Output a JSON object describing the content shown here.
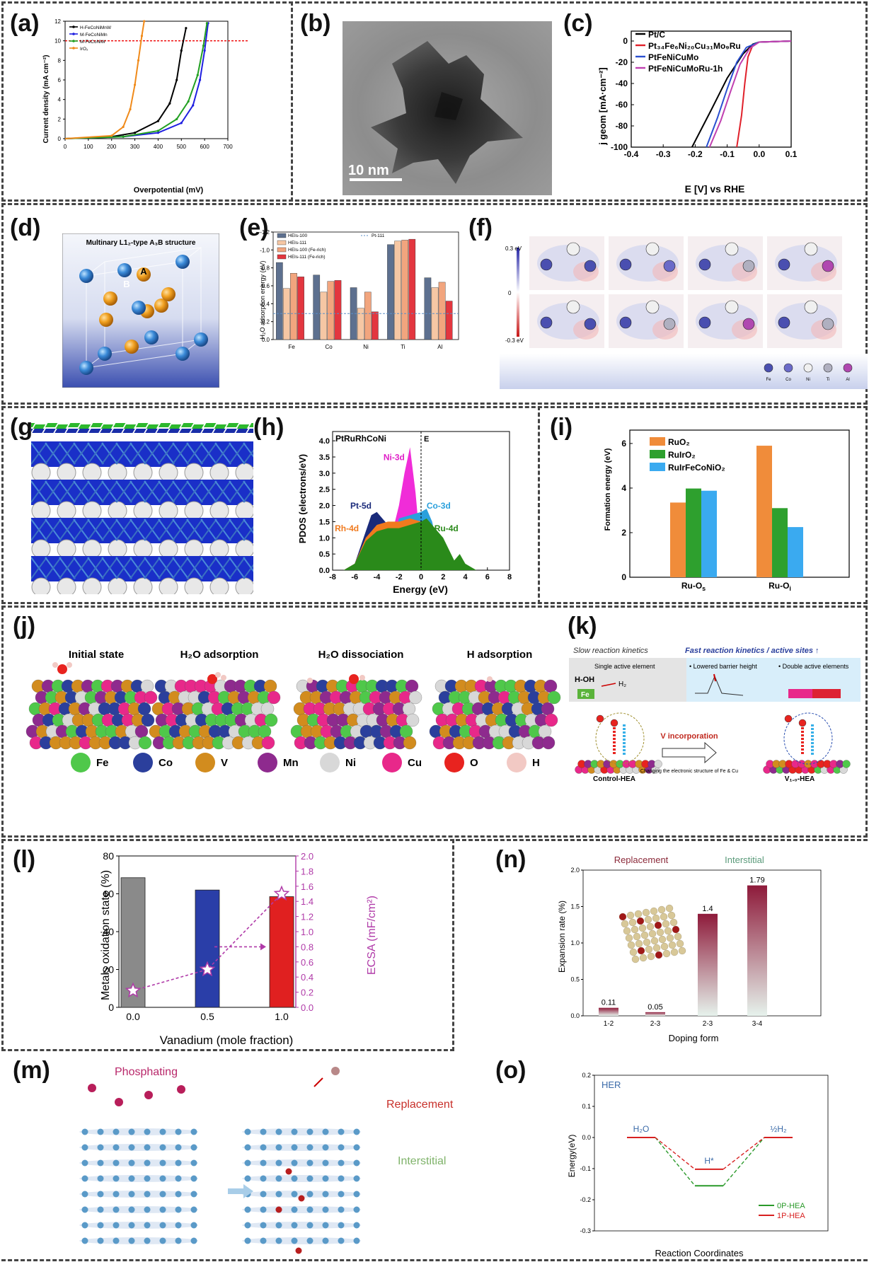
{
  "figure": {
    "panel_labels": [
      "(a)",
      "(b)",
      "(c)",
      "(d)",
      "(e)",
      "(f)",
      "(g)",
      "(h)",
      "(i)",
      "(j)",
      "(k)",
      "(l)",
      "(m)",
      "(n)",
      "(o)"
    ]
  },
  "panel_a": {
    "ylabel": "Current density (mA cm⁻²)",
    "xlabel": "Overpotential (mV)",
    "legend": [
      "H-FeCoNiMnW",
      "M-FeCoNiMn",
      "M-FeCoNiW",
      "IrO₂"
    ],
    "colors": [
      "#000000",
      "#1f1fe0",
      "#22a022",
      "#f08a1a"
    ],
    "xticks": [
      "0",
      "100",
      "200",
      "300",
      "400",
      "500",
      "600",
      "700"
    ],
    "yticks": [
      "0",
      "2",
      "4",
      "6",
      "8",
      "10",
      "12"
    ],
    "ref_line_value": 10
  },
  "panel_b": {
    "scale_bar": "10 nm"
  },
  "panel_c": {
    "ylabel": "j geom [mA·cm⁻²]",
    "xlabel": "E [V] vs RHE",
    "legend": [
      "Pt/C",
      "Pt₃₄Fe₆Ni₂₀Cu₃₁Mo₉Ru",
      "PtFeNiCuMo",
      "PtFeNiCuMoRu-1h"
    ],
    "colors": [
      "#000000",
      "#e0202a",
      "#2a4fd0",
      "#c040b0"
    ],
    "xticks": [
      "-0.4",
      "-0.3",
      "-0.2",
      "-0.1",
      "0.0",
      "0.1"
    ],
    "yticks": [
      "0",
      "-20",
      "-40",
      "-60",
      "-80",
      "-100"
    ]
  },
  "panel_d": {
    "title": "Multinary L1₂-type A₃B structure",
    "atom_a": "A",
    "atom_b": "B"
  },
  "panel_e": {
    "ylabel": "H₂O adsorption energy (eV)",
    "legend": [
      "HEIs-100",
      "HEIs-111",
      "HEIs-100 (Fe-rich)",
      "HEIs-111 (Fe-rich)",
      "Pt-111"
    ],
    "yticks": [
      "0.0",
      "-0.2",
      "-0.4",
      "-0.6",
      "-0.8",
      "-1.0",
      "-1.2"
    ]
  },
  "panel_f": {
    "scale_top": "0.3 eV",
    "scale_mid": "0",
    "scale_bot": "-0.3 eV",
    "elements": [
      "Fe",
      "Co",
      "Ni",
      "Ti",
      "Al"
    ]
  },
  "panel_h": {
    "title": "PtRuRhCoNi",
    "ef": "E",
    "ylabel": "PDOS (electrons/eV)",
    "xlabel": "Energy (eV)",
    "labels": [
      "Ni-3d",
      "Pt-5d",
      "Co-3d",
      "Rh-4d",
      "Ru-4d"
    ],
    "xticks": [
      "-8",
      "-6",
      "-4",
      "-2",
      "0",
      "2",
      "4",
      "6",
      "8"
    ],
    "yticks": [
      "0.0",
      "0.5",
      "1.0",
      "1.5",
      "2.0",
      "2.5",
      "3.0",
      "3.5",
      "4.0"
    ]
  },
  "panel_i": {
    "ylabel": "Formation energy (eV)",
    "legend": [
      "RuO₂",
      "RuIrO₂",
      "RuIrFeCoNiO₂"
    ],
    "yticks": [
      "0",
      "2",
      "4",
      "6"
    ]
  },
  "panel_j": {
    "states": [
      "Initial state",
      "H₂O adsorption",
      "H₂O dissociation",
      "H adsorption"
    ],
    "elements": [
      {
        "name": "Fe",
        "color": "#4fc84a"
      },
      {
        "name": "Co",
        "color": "#2b3f9c"
      },
      {
        "name": "V",
        "color": "#d28c1e"
      },
      {
        "name": "Mn",
        "color": "#8e2a8e"
      },
      {
        "name": "Ni",
        "color": "#d8d8d8"
      },
      {
        "name": "Cu",
        "color": "#e8288a"
      },
      {
        "name": "O",
        "color": "#e8231f"
      },
      {
        "name": "H",
        "color": "#f2c9c4"
      }
    ]
  },
  "panel_k": {
    "slow_title": "Slow reaction kinetics",
    "fast_title": "Fast reaction kinetics / active sites ↑",
    "single": "Single active element",
    "lowered": "• Lowered barrier height",
    "double": "• Double active elements",
    "hoh": "H-OH",
    "h2": "H₂",
    "fe": "Fe",
    "v_inc": "V incorporation",
    "v_inc_sub": "Changing the electronic structure of Fe & Cu",
    "control": "Control-HEA",
    "v10": "V₁.₀-HEA"
  },
  "panel_l": {
    "ylabel_left": "Metals oxidation state (%)",
    "ylabel_right": "ECSA (mF/cm²)",
    "xlabel": "Vanadium (mole fraction)",
    "yticks_left": [
      "0",
      "20",
      "40",
      "60",
      "80"
    ],
    "yticks_right": [
      "0.0",
      "0.2",
      "0.4",
      "0.6",
      "0.8",
      "1.0",
      "1.2",
      "1.4",
      "1.6",
      "1.8",
      "2.0"
    ],
    "xticks": [
      "0.0",
      "0.5",
      "1.0"
    ]
  },
  "panel_m": {
    "phosphating": "Phosphating",
    "replacement": "Replacement",
    "interstitial": "Interstitial"
  },
  "panel_n": {
    "replacement": "Replacement",
    "interstitial": "Interstitial",
    "ylabel": "Expansion rate (%)",
    "xlabel": "Doping form",
    "yticks": [
      "0.0",
      "0.5",
      "1.0",
      "1.5",
      "2.0"
    ]
  },
  "panel_o": {
    "title": "HER",
    "ylabel": "Energy(eV)",
    "xlabel": "Reaction Coordinates",
    "states": [
      "H₂O",
      "H*",
      "½H₂"
    ],
    "legend": [
      "0P-HEA",
      "1P-HEA"
    ],
    "yticks": [
      "0.2",
      "0.1",
      "0.0",
      "-0.1",
      "-0.2",
      "-0.3"
    ]
  },
  "chart_data": [
    {
      "panel": "a",
      "type": "line",
      "xlim": [
        0,
        700
      ],
      "ylim": [
        0,
        12
      ],
      "series": [
        {
          "name": "H-FeCoNiMnW",
          "x": [
            0,
            200,
            300,
            400,
            450,
            480,
            500,
            520
          ],
          "y": [
            0,
            0.2,
            0.6,
            1.8,
            3.6,
            6,
            9,
            11.3
          ]
        },
        {
          "name": "M-FeCoNiMn",
          "x": [
            0,
            250,
            400,
            500,
            550,
            580,
            600,
            615
          ],
          "y": [
            0,
            0.2,
            0.6,
            1.6,
            3.4,
            6,
            9,
            11.8
          ]
        },
        {
          "name": "M-FeCoNiW",
          "x": [
            0,
            250,
            400,
            480,
            530,
            570,
            595,
            610
          ],
          "y": [
            0,
            0.2,
            0.8,
            2,
            3.8,
            6.5,
            9.5,
            11.8
          ]
        },
        {
          "name": "IrO₂",
          "x": [
            0,
            200,
            250,
            280,
            300,
            315,
            330,
            340
          ],
          "y": [
            0,
            0.3,
            1.2,
            3,
            5.5,
            8,
            10.5,
            12
          ]
        }
      ]
    },
    {
      "panel": "c",
      "type": "line",
      "xlim": [
        -0.4,
        0.1
      ],
      "ylim": [
        -100,
        0
      ],
      "series": [
        {
          "name": "Pt/C",
          "x": [
            -0.21,
            -0.15,
            -0.1,
            -0.05,
            -0.02,
            0.0,
            0.1
          ],
          "y": [
            -100,
            -65,
            -35,
            -12,
            -3,
            -1,
            0
          ]
        },
        {
          "name": "Pt₃₄Fe₆Ni₂₀Cu₃₁Mo₉Ru",
          "x": [
            -0.07,
            -0.055,
            -0.045,
            -0.035,
            -0.02,
            0.0,
            0.1
          ],
          "y": [
            -100,
            -70,
            -40,
            -15,
            -4,
            -1,
            0
          ]
        },
        {
          "name": "PtFeNiCuMo",
          "x": [
            -0.165,
            -0.13,
            -0.1,
            -0.07,
            -0.04,
            0.0,
            0.1
          ],
          "y": [
            -100,
            -72,
            -45,
            -20,
            -6,
            -1,
            0
          ]
        },
        {
          "name": "PtFeNiCuMoRu-1h",
          "x": [
            -0.155,
            -0.12,
            -0.09,
            -0.06,
            -0.03,
            0.0,
            0.1
          ],
          "y": [
            -100,
            -75,
            -48,
            -22,
            -7,
            -1,
            0
          ]
        }
      ]
    },
    {
      "panel": "e",
      "type": "bar",
      "ylim": [
        0,
        -1.2
      ],
      "categories": [
        "Fe",
        "Co",
        "Ni",
        "Ti",
        "Al"
      ],
      "series": [
        {
          "name": "HEIs-100",
          "values": [
            -0.86,
            -0.72,
            -0.58,
            -1.06,
            -0.69
          ]
        },
        {
          "name": "HEIs-111",
          "values": [
            -0.57,
            -0.53,
            -0.35,
            -1.1,
            -0.58
          ]
        },
        {
          "name": "HEIs-100 (Fe-rich)",
          "values": [
            -0.74,
            -0.65,
            -0.53,
            -1.11,
            -0.64
          ]
        },
        {
          "name": "HEIs-111 (Fe-rich)",
          "values": [
            -0.7,
            -0.66,
            -0.31,
            -1.12,
            -0.43
          ]
        }
      ],
      "reference": {
        "name": "Pt-111",
        "value": -0.29
      }
    },
    {
      "panel": "h",
      "type": "area",
      "xlim": [
        -8,
        8
      ],
      "ylim": [
        0,
        4.0
      ],
      "series": [
        {
          "name": "Pt-5d",
          "x": [
            -7,
            -6,
            -5,
            -4.5,
            -4,
            -3,
            -2,
            -1,
            0,
            1,
            2,
            3,
            4
          ],
          "y": [
            0,
            0.2,
            1.2,
            1.7,
            1.8,
            1.4,
            1.2,
            1.3,
            1.6,
            1.2,
            0.3,
            0.1,
            0
          ]
        },
        {
          "name": "Ni-3d",
          "x": [
            -4,
            -3,
            -2,
            -1.5,
            -1,
            -0.5,
            0
          ],
          "y": [
            0,
            0.6,
            2.0,
            3.0,
            3.8,
            2.4,
            0.5
          ]
        },
        {
          "name": "Co-3d",
          "x": [
            -3,
            -2,
            -1,
            0,
            0.5,
            1,
            2
          ],
          "y": [
            0,
            1.6,
            1.7,
            1.8,
            1.9,
            1.5,
            0
          ]
        },
        {
          "name": "Rh-4d",
          "x": [
            -7,
            -6,
            -5,
            -4,
            -3,
            -2,
            -1,
            0,
            1,
            2,
            3
          ],
          "y": [
            0,
            0.2,
            1.0,
            1.4,
            1.5,
            1.5,
            1.6,
            1.5,
            1.1,
            0.2,
            0
          ]
        },
        {
          "name": "Ru-4d",
          "x": [
            -7,
            -6,
            -5,
            -4,
            -3,
            -2,
            -1,
            0,
            0.5,
            1,
            2,
            3,
            3.5,
            4,
            5
          ],
          "y": [
            0,
            0.2,
            0.9,
            1.2,
            1.3,
            1.3,
            1.4,
            1.5,
            1.6,
            1.4,
            1.0,
            0.3,
            0.5,
            0.2,
            0
          ]
        }
      ]
    },
    {
      "panel": "i",
      "type": "bar",
      "ylim": [
        0,
        6
      ],
      "categories": [
        "Ru-Os",
        "Ru-Oi"
      ],
      "series": [
        {
          "name": "RuO₂",
          "values": [
            3.35,
            5.9
          ]
        },
        {
          "name": "RuIrO₂",
          "values": [
            3.98,
            3.1
          ]
        },
        {
          "name": "RuIrFeCoNiO₂",
          "values": [
            3.88,
            2.25
          ]
        }
      ]
    },
    {
      "panel": "l",
      "type": "bar",
      "categories": [
        "0.0",
        "0.5",
        "1.0"
      ],
      "series": [
        {
          "name": "Metals oxidation state",
          "values": [
            68.5,
            62,
            58.5
          ]
        },
        {
          "name": "ECSA",
          "values": [
            0.22,
            0.5,
            1.5
          ]
        }
      ]
    },
    {
      "panel": "n",
      "type": "bar",
      "ylim": [
        0,
        2.0
      ],
      "categories": [
        "1-2",
        "2-3",
        "2-3",
        "3-4"
      ],
      "values": [
        0.11,
        0.05,
        1.4,
        1.79
      ]
    },
    {
      "panel": "o",
      "type": "line",
      "ylim": [
        -0.3,
        0.2
      ],
      "categories": [
        "H₂O",
        "H*",
        "½H₂"
      ],
      "series": [
        {
          "name": "0P-HEA",
          "values": [
            0.0,
            -0.155,
            0.0
          ]
        },
        {
          "name": "1P-HEA",
          "values": [
            0.0,
            -0.102,
            0.0
          ]
        }
      ]
    }
  ]
}
